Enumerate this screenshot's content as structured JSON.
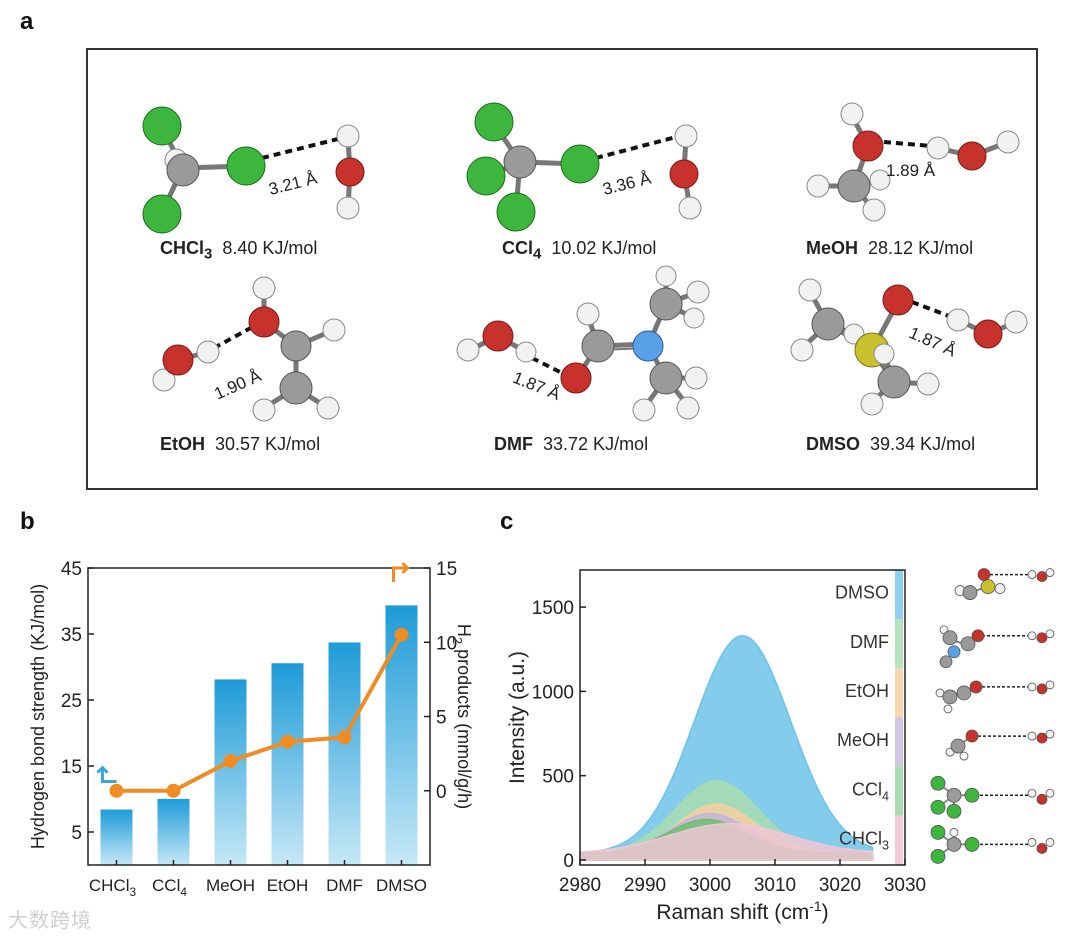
{
  "panels": {
    "a": "a",
    "b": "b",
    "c": "c"
  },
  "molecules": [
    {
      "name": "CHCl",
      "sub": "3",
      "energy": "8.40 KJ/mol",
      "distance": "3.21 Å"
    },
    {
      "name": "CCl",
      "sub": "4",
      "energy": "10.02 KJ/mol",
      "distance": "3.36 Å"
    },
    {
      "name": "MeOH",
      "sub": "",
      "energy": "28.12 KJ/mol",
      "distance": "1.89 Å"
    },
    {
      "name": "EtOH",
      "sub": "",
      "energy": "30.57 KJ/mol",
      "distance": "1.90 Å"
    },
    {
      "name": "DMF",
      "sub": "",
      "energy": "33.72 KJ/mol",
      "distance": "1.87 Å"
    },
    {
      "name": "DMSO",
      "sub": "",
      "energy": "39.34 KJ/mol",
      "distance": "1.87 Å"
    }
  ],
  "colors": {
    "carbon": "#9a9a9a",
    "hydrogen": "#f2f2f2",
    "oxygen": "#c8322c",
    "chlorine": "#3cb63c",
    "nitrogen": "#5aa0e8",
    "sulfur": "#c8c02c",
    "bar": "#3aa6dc",
    "line": "#ef8c24"
  },
  "chart_data": [
    {
      "type": "bar",
      "categories": [
        "CHCl3",
        "CCl4",
        "MeOH",
        "EtOH",
        "DMF",
        "DMSO"
      ],
      "category_labels": [
        {
          "main": "CHCl",
          "sub": "3"
        },
        {
          "main": "CCl",
          "sub": "4"
        },
        {
          "main": "MeOH",
          "sub": ""
        },
        {
          "main": "EtOH",
          "sub": ""
        },
        {
          "main": "DMF",
          "sub": ""
        },
        {
          "main": "DMSO",
          "sub": ""
        }
      ],
      "series": [
        {
          "name": "Hydrogen bond strength",
          "axis": "left",
          "type": "bar",
          "values": [
            8.4,
            10.02,
            28.12,
            30.57,
            33.72,
            39.34
          ]
        },
        {
          "name": "H2 products",
          "axis": "right",
          "type": "line",
          "values": [
            0,
            0,
            2.0,
            3.3,
            3.6,
            10.5
          ]
        }
      ],
      "ylabel": "Hydrogen bond strength (KJ/mol)",
      "y2label_parts": [
        "H",
        "2",
        " products (mmol/g/h)"
      ],
      "ylim": [
        0,
        45
      ],
      "yticks": [
        5,
        15,
        25,
        35,
        45
      ],
      "y2lim": [
        -5,
        15
      ],
      "y2ticks": [
        0,
        5,
        10,
        15
      ]
    },
    {
      "type": "area",
      "series": [
        {
          "name": "DMSO",
          "center": 3005,
          "width": 10.5,
          "peak": 1330,
          "color": "#6ec3e8"
        },
        {
          "name": "DMF",
          "center": 3001,
          "width": 9,
          "peak": 470,
          "color": "#a8dcb0"
        },
        {
          "name": "EtOH",
          "center": 3001,
          "width": 8.5,
          "peak": 330,
          "color": "#f4cfa0"
        },
        {
          "name": "MeOH",
          "center": 3000,
          "width": 8.5,
          "peak": 275,
          "color": "#c4b6d8"
        },
        {
          "name": "CCl4",
          "center": 2999.5,
          "width": 8.5,
          "peak": 240,
          "color": "#6cbf72"
        },
        {
          "name": "CHCl3",
          "center": 3003,
          "width": 13,
          "peak": 215,
          "color": "#eec6d4"
        }
      ],
      "baseline": 40,
      "legend": [
        {
          "main": "DMSO",
          "sub": "",
          "color": "#8ccfee"
        },
        {
          "main": "DMF",
          "sub": "",
          "color": "#b4e4bf"
        },
        {
          "main": "EtOH",
          "sub": "",
          "color": "#f7d7b0"
        },
        {
          "main": "MeOH",
          "sub": "",
          "color": "#cfc6e2"
        },
        {
          "main": "CCl",
          "sub": "4",
          "color": "#a9dcae"
        },
        {
          "main": "CHCl",
          "sub": "3",
          "color": "#f2c9d7"
        }
      ],
      "xlabel_parts": [
        "Raman shift (cm",
        "-1",
        ")"
      ],
      "ylabel": "Intensity (a.u.)",
      "xlim": [
        2980,
        3030
      ],
      "xticks": [
        2980,
        2990,
        3000,
        3010,
        3020,
        3030
      ],
      "ylim": [
        -30,
        1720
      ],
      "yticks": [
        0,
        500,
        1000,
        1500
      ]
    }
  ],
  "watermark": "大数跨境"
}
